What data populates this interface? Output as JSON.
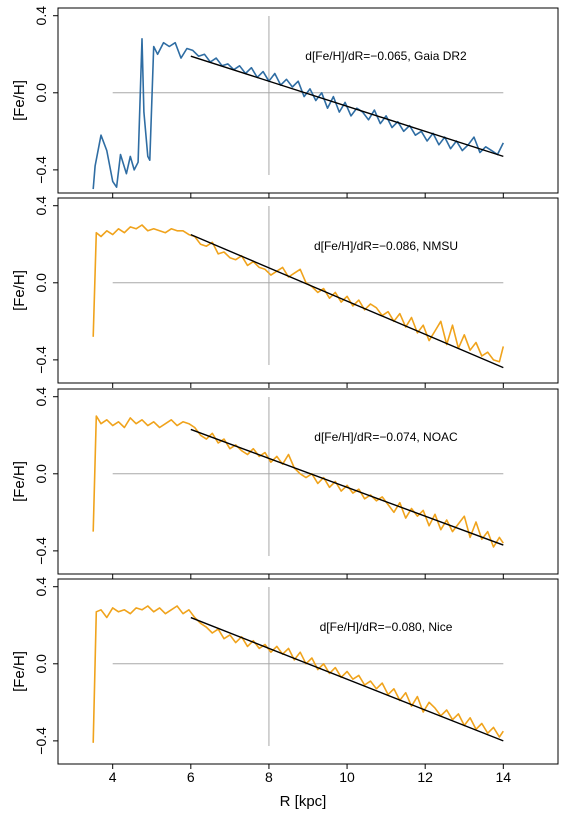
{
  "figure": {
    "xlabel": "R [kpc]",
    "ylabel": "[Fe/H]",
    "xticks": [
      4,
      6,
      8,
      10,
      12,
      14
    ],
    "yticks": [
      -0.4,
      0.0,
      0.4
    ],
    "ytick_labels": [
      "−0.4",
      "0.0",
      "0.4"
    ],
    "xlim": [
      2.6,
      15.4
    ],
    "ylim": [
      -0.52,
      0.44
    ]
  },
  "chart_data": [
    {
      "type": "line",
      "annotation": "d[Fe/H]/dR=−0.065, Gaia DR2",
      "color": "#2f6da3",
      "slope": -0.065,
      "fit": {
        "x": [
          6,
          14
        ],
        "y": [
          0.19,
          -0.33
        ]
      },
      "ref_lines": {
        "x": 8.0,
        "y": 0.0
      },
      "x": [
        3.5,
        3.55,
        3.7,
        3.85,
        4.0,
        4.1,
        4.2,
        4.35,
        4.45,
        4.55,
        4.65,
        4.75,
        4.8,
        4.9,
        4.95,
        5.05,
        5.15,
        5.3,
        5.45,
        5.6,
        5.75,
        5.9,
        6.05,
        6.2,
        6.35,
        6.5,
        6.65,
        6.8,
        6.95,
        7.1,
        7.25,
        7.4,
        7.55,
        7.7,
        7.85,
        8.0,
        8.15,
        8.3,
        8.45,
        8.6,
        8.75,
        8.9,
        9.05,
        9.2,
        9.35,
        9.5,
        9.65,
        9.8,
        9.95,
        10.1,
        10.25,
        10.4,
        10.55,
        10.7,
        10.85,
        11.0,
        11.15,
        11.3,
        11.45,
        11.6,
        11.75,
        11.9,
        12.05,
        12.2,
        12.35,
        12.5,
        12.65,
        12.8,
        12.95,
        13.1,
        13.25,
        13.4,
        13.55,
        13.7,
        13.85,
        14.0
      ],
      "y": [
        -0.5,
        -0.38,
        -0.22,
        -0.3,
        -0.46,
        -0.49,
        -0.32,
        -0.42,
        -0.33,
        -0.4,
        -0.36,
        0.28,
        -0.1,
        -0.33,
        -0.35,
        0.24,
        0.2,
        0.26,
        0.24,
        0.26,
        0.18,
        0.23,
        0.22,
        0.19,
        0.2,
        0.16,
        0.18,
        0.14,
        0.15,
        0.12,
        0.14,
        0.1,
        0.13,
        0.08,
        0.11,
        0.06,
        0.1,
        0.04,
        0.07,
        0.03,
        0.06,
        -0.02,
        0.02,
        -0.04,
        0.0,
        -0.08,
        -0.02,
        -0.1,
        -0.05,
        -0.12,
        -0.08,
        -0.1,
        -0.14,
        -0.09,
        -0.16,
        -0.12,
        -0.18,
        -0.15,
        -0.2,
        -0.17,
        -0.22,
        -0.2,
        -0.25,
        -0.21,
        -0.27,
        -0.23,
        -0.29,
        -0.25,
        -0.3,
        -0.27,
        -0.23,
        -0.31,
        -0.28,
        -0.3,
        -0.32,
        -0.26
      ]
    },
    {
      "type": "line",
      "annotation": "d[Fe/H]/dR=−0.086, NMSU",
      "color": "#f0a31c",
      "slope": -0.086,
      "fit": {
        "x": [
          6,
          14
        ],
        "y": [
          0.25,
          -0.44
        ]
      },
      "ref_lines": {
        "x": 8.0,
        "y": 0.0
      },
      "x": [
        3.5,
        3.58,
        3.7,
        3.85,
        4.0,
        4.15,
        4.3,
        4.45,
        4.6,
        4.75,
        4.9,
        5.05,
        5.2,
        5.35,
        5.5,
        5.65,
        5.8,
        5.95,
        6.1,
        6.25,
        6.4,
        6.55,
        6.7,
        6.85,
        7.0,
        7.15,
        7.3,
        7.45,
        7.6,
        7.75,
        7.9,
        8.05,
        8.2,
        8.35,
        8.5,
        8.65,
        8.8,
        8.95,
        9.1,
        9.25,
        9.4,
        9.55,
        9.7,
        9.85,
        10.0,
        10.15,
        10.3,
        10.45,
        10.6,
        10.75,
        10.9,
        11.05,
        11.2,
        11.35,
        11.5,
        11.65,
        11.8,
        11.95,
        12.1,
        12.25,
        12.4,
        12.55,
        12.7,
        12.85,
        13.0,
        13.15,
        13.3,
        13.45,
        13.6,
        13.75,
        13.9,
        14.0
      ],
      "y": [
        -0.28,
        0.26,
        0.24,
        0.27,
        0.25,
        0.28,
        0.26,
        0.29,
        0.28,
        0.3,
        0.27,
        0.28,
        0.27,
        0.26,
        0.28,
        0.27,
        0.27,
        0.25,
        0.24,
        0.2,
        0.19,
        0.21,
        0.15,
        0.16,
        0.13,
        0.12,
        0.14,
        0.09,
        0.11,
        0.08,
        0.07,
        0.04,
        0.06,
        0.08,
        0.03,
        0.05,
        0.07,
        0.0,
        -0.02,
        -0.05,
        -0.03,
        -0.08,
        -0.05,
        -0.1,
        -0.07,
        -0.12,
        -0.09,
        -0.14,
        -0.11,
        -0.13,
        -0.17,
        -0.15,
        -0.2,
        -0.16,
        -0.23,
        -0.18,
        -0.26,
        -0.22,
        -0.3,
        -0.25,
        -0.2,
        -0.32,
        -0.22,
        -0.34,
        -0.27,
        -0.35,
        -0.31,
        -0.38,
        -0.36,
        -0.4,
        -0.41,
        -0.33
      ]
    },
    {
      "type": "line",
      "annotation": "d[Fe/H]/dR=−0.074, NOAC",
      "color": "#f0a31c",
      "slope": -0.074,
      "fit": {
        "x": [
          6,
          14
        ],
        "y": [
          0.23,
          -0.37
        ]
      },
      "ref_lines": {
        "x": 8.0,
        "y": 0.0
      },
      "x": [
        3.5,
        3.58,
        3.7,
        3.85,
        4.0,
        4.15,
        4.3,
        4.45,
        4.6,
        4.75,
        4.9,
        5.05,
        5.2,
        5.35,
        5.5,
        5.65,
        5.8,
        5.95,
        6.1,
        6.25,
        6.4,
        6.55,
        6.7,
        6.85,
        7.0,
        7.15,
        7.3,
        7.45,
        7.6,
        7.75,
        7.9,
        8.05,
        8.2,
        8.35,
        8.5,
        8.65,
        8.8,
        8.95,
        9.1,
        9.25,
        9.4,
        9.55,
        9.7,
        9.85,
        10.0,
        10.15,
        10.3,
        10.45,
        10.6,
        10.75,
        10.9,
        11.05,
        11.2,
        11.35,
        11.5,
        11.65,
        11.8,
        11.95,
        12.1,
        12.25,
        12.4,
        12.55,
        12.7,
        12.85,
        13.0,
        13.15,
        13.3,
        13.45,
        13.6,
        13.75,
        13.9,
        14.0
      ],
      "y": [
        -0.3,
        0.3,
        0.26,
        0.28,
        0.25,
        0.27,
        0.24,
        0.29,
        0.26,
        0.28,
        0.25,
        0.27,
        0.24,
        0.26,
        0.28,
        0.25,
        0.27,
        0.26,
        0.24,
        0.2,
        0.18,
        0.21,
        0.16,
        0.18,
        0.13,
        0.15,
        0.12,
        0.1,
        0.13,
        0.09,
        0.11,
        0.06,
        0.09,
        0.05,
        0.1,
        0.03,
        0.0,
        -0.02,
        0.0,
        -0.05,
        -0.02,
        -0.07,
        -0.04,
        -0.09,
        -0.06,
        -0.1,
        -0.08,
        -0.13,
        -0.11,
        -0.14,
        -0.12,
        -0.16,
        -0.2,
        -0.15,
        -0.23,
        -0.18,
        -0.22,
        -0.19,
        -0.27,
        -0.21,
        -0.29,
        -0.24,
        -0.3,
        -0.26,
        -0.22,
        -0.33,
        -0.25,
        -0.34,
        -0.3,
        -0.38,
        -0.33,
        -0.36
      ]
    },
    {
      "type": "line",
      "annotation": "d[Fe/H]/dR=−0.080, Nice",
      "color": "#f0a31c",
      "slope": -0.08,
      "fit": {
        "x": [
          6,
          14
        ],
        "y": [
          0.24,
          -0.4
        ]
      },
      "ref_lines": {
        "x": 8.0,
        "y": 0.0
      },
      "x": [
        3.5,
        3.58,
        3.7,
        3.85,
        4.0,
        4.15,
        4.3,
        4.45,
        4.6,
        4.75,
        4.9,
        5.05,
        5.2,
        5.35,
        5.5,
        5.65,
        5.8,
        5.95,
        6.1,
        6.25,
        6.4,
        6.55,
        6.7,
        6.85,
        7.0,
        7.15,
        7.3,
        7.45,
        7.6,
        7.75,
        7.9,
        8.05,
        8.2,
        8.35,
        8.5,
        8.65,
        8.8,
        8.95,
        9.1,
        9.25,
        9.4,
        9.55,
        9.7,
        9.85,
        10.0,
        10.15,
        10.3,
        10.45,
        10.6,
        10.75,
        10.9,
        11.05,
        11.2,
        11.35,
        11.5,
        11.65,
        11.8,
        11.95,
        12.1,
        12.25,
        12.4,
        12.55,
        12.7,
        12.85,
        13.0,
        13.15,
        13.3,
        13.45,
        13.6,
        13.75,
        13.9,
        14.0
      ],
      "y": [
        -0.41,
        0.27,
        0.28,
        0.24,
        0.29,
        0.27,
        0.28,
        0.26,
        0.29,
        0.28,
        0.3,
        0.27,
        0.29,
        0.26,
        0.28,
        0.3,
        0.26,
        0.28,
        0.24,
        0.21,
        0.19,
        0.16,
        0.18,
        0.13,
        0.15,
        0.11,
        0.14,
        0.09,
        0.12,
        0.08,
        0.1,
        0.06,
        0.09,
        0.05,
        0.08,
        0.02,
        0.06,
        0.0,
        0.03,
        -0.03,
        0.0,
        -0.05,
        -0.02,
        -0.07,
        -0.04,
        -0.08,
        -0.06,
        -0.11,
        -0.09,
        -0.13,
        -0.1,
        -0.16,
        -0.13,
        -0.19,
        -0.15,
        -0.22,
        -0.17,
        -0.25,
        -0.2,
        -0.23,
        -0.27,
        -0.24,
        -0.29,
        -0.26,
        -0.32,
        -0.28,
        -0.34,
        -0.31,
        -0.36,
        -0.33,
        -0.38,
        -0.35
      ]
    }
  ]
}
